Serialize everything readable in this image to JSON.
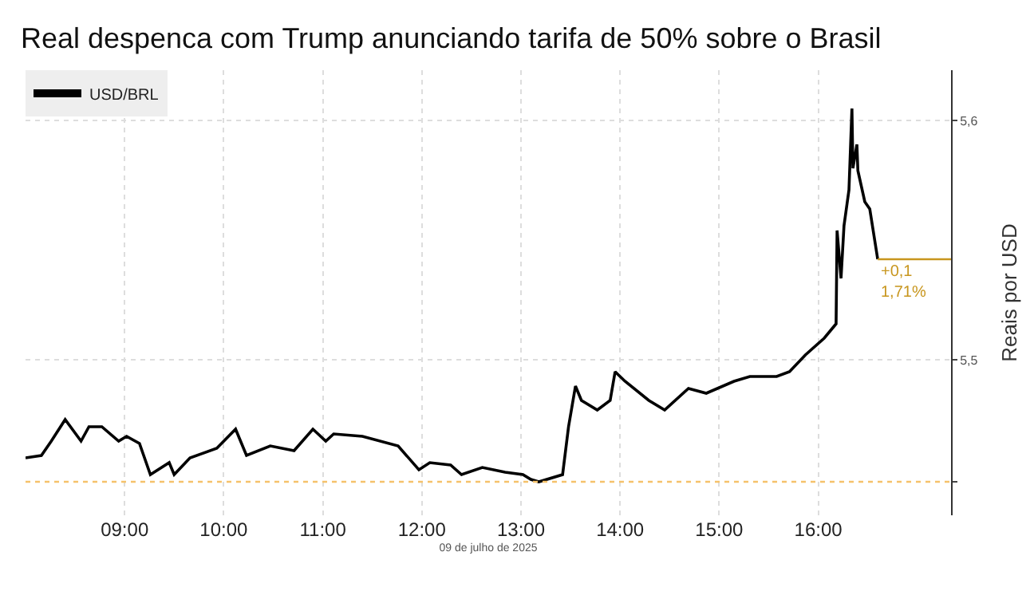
{
  "chart_data": {
    "type": "line",
    "title": "Real despenca com Trump anunciando tarifa de 50% sobre o Brasil",
    "xlabel": "09 de julho de 2025",
    "ylabel": "Reais por USD",
    "x": [
      8.0,
      8.16,
      8.26,
      8.4,
      8.56,
      8.64,
      8.77,
      8.94,
      9.02,
      9.15,
      9.26,
      9.45,
      9.5,
      9.66,
      9.93,
      10.12,
      10.23,
      10.47,
      10.71,
      10.9,
      11.03,
      11.11,
      11.4,
      11.76,
      11.97,
      12.08,
      12.29,
      12.4,
      12.61,
      12.84,
      13.02,
      13.1,
      13.18,
      13.42,
      13.48,
      13.55,
      13.61,
      13.77,
      13.9,
      13.95,
      14.05,
      14.29,
      14.45,
      14.69,
      14.87,
      15.15,
      15.31,
      15.58,
      15.71,
      15.87,
      16.06,
      16.16,
      16.18,
      16.19,
      16.23,
      16.26,
      16.31,
      16.34,
      16.35,
      16.39,
      16.4,
      16.47,
      16.52,
      16.6
    ],
    "series": [
      {
        "name": "USD/BRL",
        "color": "#000000",
        "values": [
          5.459,
          5.46,
          5.466,
          5.475,
          5.466,
          5.472,
          5.472,
          5.466,
          5.468,
          5.465,
          5.452,
          5.457,
          5.452,
          5.459,
          5.463,
          5.471,
          5.46,
          5.464,
          5.462,
          5.471,
          5.466,
          5.469,
          5.468,
          5.464,
          5.454,
          5.457,
          5.456,
          5.452,
          5.455,
          5.453,
          5.452,
          5.45,
          5.449,
          5.452,
          5.472,
          5.489,
          5.483,
          5.479,
          5.483,
          5.495,
          5.491,
          5.483,
          5.479,
          5.488,
          5.486,
          5.491,
          5.493,
          5.493,
          5.495,
          5.502,
          5.509,
          5.514,
          5.515,
          5.554,
          5.534,
          5.556,
          5.571,
          5.605,
          5.58,
          5.59,
          5.579,
          5.566,
          5.563,
          5.542
        ]
      },
      {
        "type": "line",
        "color": "#c8961e",
        "x": [
          16.6,
          17.34
        ],
        "values": [
          5.542,
          5.542
        ]
      }
    ],
    "xlim": [
      8.0,
      17.34
    ],
    "ylim": [
      5.435,
      5.621
    ],
    "xticks": [
      {
        "value": 9,
        "label": "09:00"
      },
      {
        "value": 10,
        "label": "10:00"
      },
      {
        "value": 11,
        "label": "11:00"
      },
      {
        "value": 12,
        "label": "12:00"
      },
      {
        "value": 13,
        "label": "13:00"
      },
      {
        "value": 14,
        "label": "14:00"
      },
      {
        "value": 15,
        "label": "15:00"
      },
      {
        "value": 16,
        "label": "16:00"
      }
    ],
    "yticks": [
      {
        "value": 5.449,
        "label": null
      },
      {
        "value": 5.5,
        "label": "5,5"
      },
      {
        "value": 5.6,
        "label": "5,6"
      }
    ],
    "ref_lines": [
      {
        "axis": "y",
        "value": 5.449,
        "label": null,
        "color": "#f5c26b",
        "line_style": "dotted"
      }
    ],
    "annotations": [
      {
        "text": "+0,1\n1,71%",
        "x": 16.6,
        "y": 5.542
      }
    ],
    "grid": true,
    "legend": "top left",
    "marker": "none",
    "line_style": "solid"
  }
}
